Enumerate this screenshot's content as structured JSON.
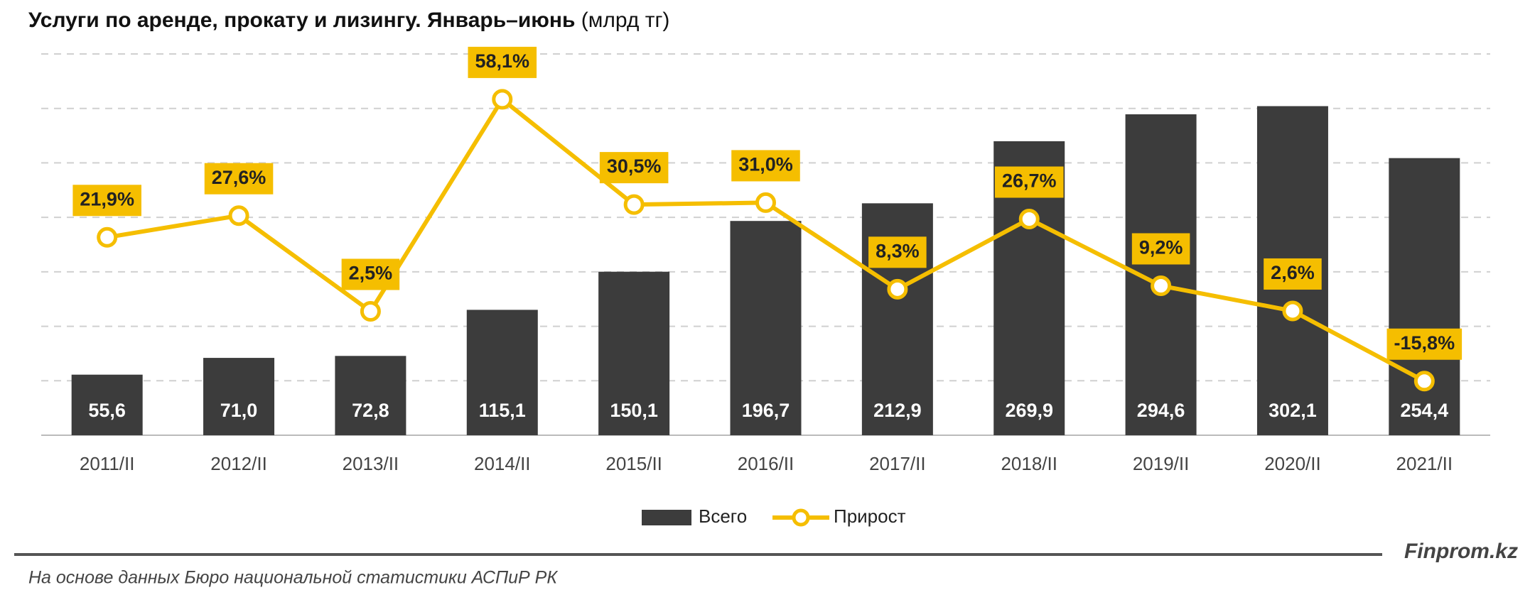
{
  "chart_data": {
    "type": "bar",
    "title": "Услуги по аренде, прокату и лизингу. Январь–июнь",
    "title_unit": "(млрд тг)",
    "categories": [
      "2011/II",
      "2012/II",
      "2013/II",
      "2014/II",
      "2015/II",
      "2016/II",
      "2017/II",
      "2018/II",
      "2019/II",
      "2020/II",
      "2021/II"
    ],
    "series": [
      {
        "name": "Всего",
        "type": "bar",
        "color": "#3c3c3c",
        "values": [
          55.6,
          71.0,
          72.8,
          115.1,
          150.1,
          196.7,
          212.9,
          269.9,
          294.6,
          302.1,
          254.4
        ],
        "value_labels": [
          "55,6",
          "71,0",
          "72,8",
          "115,1",
          "150,1",
          "196,7",
          "212,9",
          "269,9",
          "294,6",
          "302,1",
          "254,4"
        ]
      },
      {
        "name": "Прирост",
        "type": "line",
        "axis": "y2",
        "color": "#f5be00",
        "values": [
          21.9,
          27.6,
          2.5,
          58.1,
          30.5,
          31.0,
          8.3,
          26.7,
          9.2,
          2.6,
          -15.8
        ],
        "value_labels": [
          "21,9%",
          "27,6%",
          "2,5%",
          "58,1%",
          "30,5%",
          "31,0%",
          "8,3%",
          "26,7%",
          "9,2%",
          "2,6%",
          "-15,8%"
        ]
      }
    ],
    "ylim": [
      0,
      350
    ],
    "yticks": [
      0,
      50,
      100,
      150,
      200,
      250,
      300,
      350
    ],
    "y2lim": [
      -30,
      70
    ],
    "grid": true,
    "source": "На основе данных Бюро национальной статистики АСПиР РК",
    "brand": "Finprom.kz"
  }
}
